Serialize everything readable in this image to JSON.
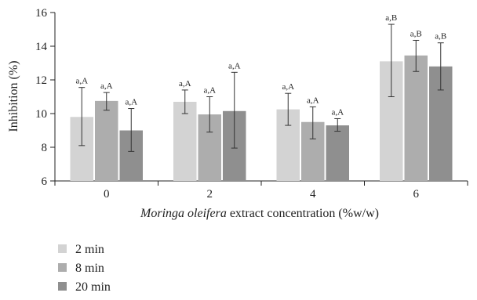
{
  "chart_data": {
    "type": "bar",
    "title": "",
    "xlabel_italic": "Moringa oleifera",
    "xlabel_rest": " extract concentration (%w/w)",
    "ylabel": "Inhibition (%)",
    "categories": [
      "0",
      "2",
      "4",
      "6"
    ],
    "ylim": [
      6,
      16
    ],
    "yticks": [
      "6",
      "8",
      "10",
      "12",
      "14",
      "16"
    ],
    "grid": false,
    "legend_position": "bottom-left",
    "series": [
      {
        "name": "2 min",
        "color": "#d3d3d3",
        "values": [
          9.8,
          10.7,
          10.25,
          13.1
        ],
        "err_low": [
          8.1,
          10.0,
          9.3,
          11.0
        ],
        "err_high": [
          11.55,
          11.4,
          11.2,
          15.3
        ],
        "labels": [
          "a,A",
          "a,A",
          "a,A",
          "a,B"
        ]
      },
      {
        "name": "8 min",
        "color": "#adadad",
        "values": [
          10.75,
          9.95,
          9.5,
          13.45
        ],
        "err_low": [
          10.2,
          8.9,
          8.5,
          12.5
        ],
        "err_high": [
          11.25,
          11.0,
          10.4,
          14.35
        ],
        "labels": [
          "a,A",
          "a,A",
          "a,A",
          "a,B"
        ]
      },
      {
        "name": "20 min",
        "color": "#8f8f8f",
        "values": [
          9.0,
          10.15,
          9.3,
          12.8
        ],
        "err_low": [
          7.75,
          7.95,
          8.95,
          11.4
        ],
        "err_high": [
          10.3,
          12.45,
          9.7,
          14.2
        ],
        "labels": [
          "a,A",
          "a,A",
          "a,A",
          "a,B"
        ]
      }
    ]
  }
}
